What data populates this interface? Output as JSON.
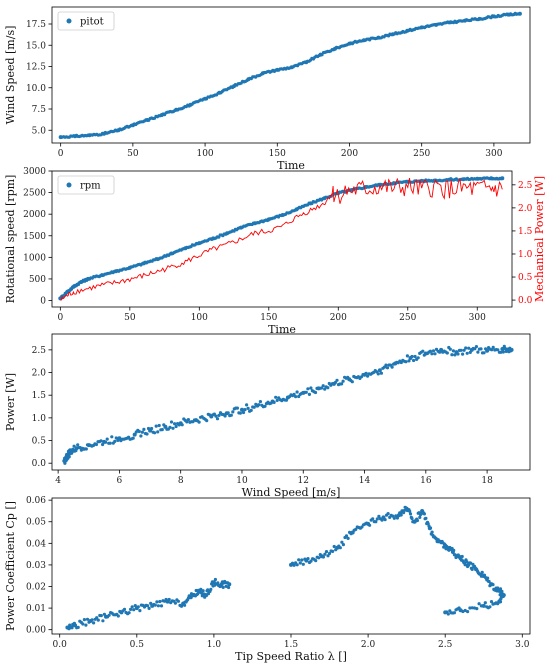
{
  "colors": {
    "scatter": "#1f77b4",
    "line": "#ff0000",
    "axis": "#000000"
  },
  "chart_data": [
    {
      "type": "scatter",
      "xlabel": "Time",
      "ylabel": "Wind Speed [m/s]",
      "legend": {
        "label": "pitot",
        "placement": "top-left"
      },
      "xlim": [
        -6,
        325
      ],
      "ylim": [
        3.5,
        19.5
      ],
      "xticks": [
        0,
        50,
        100,
        150,
        200,
        250,
        300
      ],
      "yticks": [
        5.0,
        7.5,
        10.0,
        12.5,
        15.0,
        17.5
      ],
      "ytick_labels": [
        "5.0",
        "7.5",
        "10.0",
        "12.5",
        "15.0",
        "17.5"
      ],
      "series": [
        {
          "name": "pitot",
          "x": [
            0,
            10,
            20,
            30,
            40,
            50,
            60,
            70,
            80,
            90,
            100,
            110,
            120,
            130,
            140,
            150,
            160,
            170,
            180,
            190,
            200,
            210,
            220,
            230,
            240,
            250,
            260,
            270,
            280,
            290,
            300,
            310,
            318
          ],
          "y": [
            4.2,
            4.3,
            4.4,
            4.6,
            5.0,
            5.6,
            6.2,
            6.8,
            7.4,
            8.0,
            8.7,
            9.4,
            10.2,
            11.0,
            11.7,
            12.1,
            12.4,
            13.0,
            13.9,
            14.6,
            15.2,
            15.6,
            15.9,
            16.3,
            16.7,
            17.1,
            17.4,
            17.7,
            17.9,
            18.1,
            18.4,
            18.6,
            18.7
          ]
        }
      ]
    },
    {
      "type": "line",
      "xlabel": "Time",
      "ylabel": "Rotational speed [rpm]",
      "ylabel_right": "Mechanical Power [W]",
      "legend": {
        "label": "rpm",
        "placement": "top-left"
      },
      "xlim": [
        -6,
        325
      ],
      "ylim": [
        -150,
        3000
      ],
      "ylim_right": [
        -0.15,
        2.8
      ],
      "xticks": [
        0,
        50,
        100,
        150,
        200,
        250,
        300
      ],
      "yticks": [
        0,
        500,
        1000,
        1500,
        2000,
        2500,
        3000
      ],
      "yticks_right": [
        0.0,
        0.5,
        1.0,
        1.5,
        2.0,
        2.5
      ],
      "yticks_right_labels": [
        "0.0",
        "0.5",
        "1.0",
        "1.5",
        "2.0",
        "2.5"
      ],
      "series": [
        {
          "name": "rpm",
          "axis": "left",
          "marker": "dot",
          "x": [
            0,
            5,
            10,
            15,
            20,
            30,
            40,
            50,
            60,
            70,
            80,
            90,
            100,
            110,
            120,
            130,
            140,
            150,
            160,
            170,
            180,
            190,
            200,
            210,
            220,
            230,
            240,
            250,
            260,
            270,
            280,
            290,
            300,
            310,
            318
          ],
          "y": [
            50,
            200,
            330,
            430,
            500,
            590,
            680,
            760,
            860,
            960,
            1090,
            1210,
            1330,
            1440,
            1560,
            1690,
            1790,
            1880,
            1980,
            2110,
            2250,
            2370,
            2490,
            2560,
            2630,
            2680,
            2720,
            2750,
            2770,
            2780,
            2800,
            2810,
            2820,
            2830,
            2830
          ]
        },
        {
          "name": "Mechanical Power",
          "axis": "right",
          "marker": "line",
          "x": [
            0,
            5,
            10,
            20,
            30,
            40,
            50,
            60,
            70,
            80,
            90,
            100,
            110,
            120,
            130,
            140,
            150,
            160,
            170,
            180,
            190,
            195,
            200,
            210,
            220,
            230,
            240,
            250,
            260,
            270,
            280,
            290,
            300,
            310,
            318
          ],
          "y": [
            0.0,
            0.1,
            0.18,
            0.25,
            0.32,
            0.38,
            0.45,
            0.53,
            0.62,
            0.72,
            0.83,
            0.97,
            1.1,
            1.2,
            1.32,
            1.45,
            1.5,
            1.6,
            1.8,
            1.95,
            2.1,
            2.3,
            2.3,
            2.38,
            2.4,
            2.45,
            2.42,
            2.45,
            2.4,
            2.45,
            2.4,
            2.42,
            2.4,
            2.42,
            2.4
          ]
        }
      ]
    },
    {
      "type": "scatter",
      "xlabel": "Wind Speed [m/s]",
      "ylabel": "Power [W]",
      "xlim": [
        3.8,
        19.4
      ],
      "ylim": [
        -0.15,
        2.85
      ],
      "xticks": [
        4,
        6,
        8,
        10,
        12,
        14,
        16,
        18
      ],
      "yticks": [
        0.0,
        0.5,
        1.0,
        1.5,
        2.0,
        2.5
      ],
      "ytick_labels": [
        "0.0",
        "0.5",
        "1.0",
        "1.5",
        "2.0",
        "2.5"
      ],
      "series": [
        {
          "name": "power",
          "x": [
            4.2,
            4.3,
            4.4,
            4.6,
            5.0,
            5.5,
            6.0,
            6.5,
            7.0,
            7.5,
            8.0,
            8.5,
            9.0,
            9.5,
            10.0,
            10.5,
            11.0,
            11.5,
            12.0,
            12.5,
            13.0,
            13.5,
            14.0,
            14.5,
            15.0,
            15.5,
            16.0,
            16.5,
            17.0,
            17.5,
            18.0,
            18.5,
            18.8
          ],
          "y": [
            0.05,
            0.15,
            0.25,
            0.33,
            0.4,
            0.47,
            0.55,
            0.63,
            0.72,
            0.8,
            0.88,
            0.95,
            1.03,
            1.1,
            1.18,
            1.27,
            1.36,
            1.45,
            1.55,
            1.65,
            1.75,
            1.85,
            1.95,
            2.05,
            2.2,
            2.32,
            2.42,
            2.5,
            2.45,
            2.5,
            2.48,
            2.52,
            2.5
          ]
        }
      ]
    },
    {
      "type": "scatter",
      "xlabel": "Tip Speed Ratio λ []",
      "ylabel": "Power Coefficient Cp []",
      "xlim": [
        -0.05,
        3.05
      ],
      "ylim": [
        -0.002,
        0.061
      ],
      "xticks": [
        0.0,
        0.5,
        1.0,
        1.5,
        2.0,
        2.5,
        3.0
      ],
      "xtick_labels": [
        "0.0",
        "0.5",
        "1.0",
        "1.5",
        "2.0",
        "2.5",
        "3.0"
      ],
      "yticks": [
        0.0,
        0.01,
        0.02,
        0.03,
        0.04,
        0.05,
        0.06
      ],
      "ytick_labels": [
        "0.00",
        "0.01",
        "0.02",
        "0.03",
        "0.04",
        "0.05",
        "0.06"
      ],
      "series": [
        {
          "name": "cp",
          "x": [
            0.05,
            0.1,
            0.2,
            0.3,
            0.4,
            0.5,
            0.6,
            0.7,
            0.8,
            0.85,
            0.9,
            0.95,
            1.0,
            1.05,
            1.1,
            1.5,
            1.6,
            1.7,
            1.8,
            1.9,
            2.0,
            2.1,
            2.2,
            2.25,
            2.3,
            2.35,
            2.4,
            2.45,
            2.5,
            2.55,
            2.6,
            2.65,
            2.7,
            2.75,
            2.8,
            2.85,
            2.88,
            2.85,
            2.75,
            2.6,
            2.5
          ],
          "y": [
            0.001,
            0.002,
            0.004,
            0.006,
            0.008,
            0.01,
            0.011,
            0.013,
            0.012,
            0.015,
            0.018,
            0.016,
            0.022,
            0.021,
            0.021,
            0.03,
            0.032,
            0.034,
            0.038,
            0.045,
            0.049,
            0.052,
            0.053,
            0.056,
            0.05,
            0.055,
            0.047,
            0.041,
            0.039,
            0.036,
            0.033,
            0.03,
            0.028,
            0.025,
            0.021,
            0.018,
            0.016,
            0.013,
            0.011,
            0.009,
            0.008
          ]
        }
      ]
    }
  ]
}
